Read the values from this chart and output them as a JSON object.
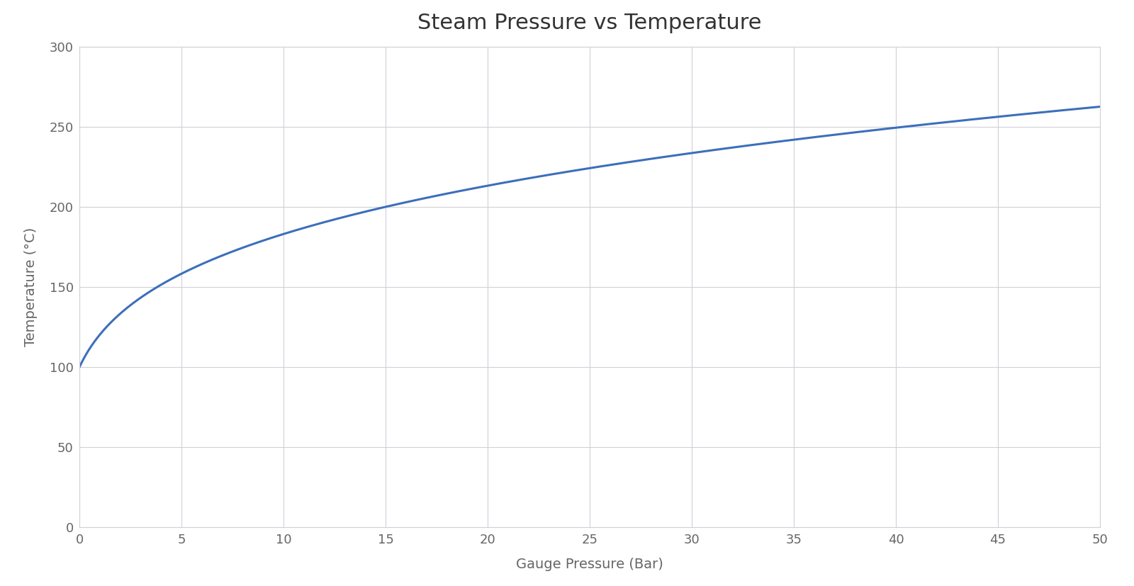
{
  "title": "Steam Pressure vs Temperature",
  "xlabel": "Gauge Pressure (Bar)",
  "ylabel": "Temperature (°C)",
  "xlim": [
    0,
    50
  ],
  "ylim": [
    0,
    300
  ],
  "xticks": [
    0,
    5,
    10,
    15,
    20,
    25,
    30,
    35,
    40,
    45,
    50
  ],
  "yticks": [
    0,
    50,
    100,
    150,
    200,
    250,
    300
  ],
  "line_color": "#3c6fba",
  "line_width": 2.2,
  "background_color": "#ffffff",
  "plot_bg_color": "#ffffff",
  "grid_color": "#d0d0d8",
  "title_fontsize": 22,
  "label_fontsize": 14,
  "tick_fontsize": 13,
  "tick_color": "#666666",
  "label_color": "#666666",
  "title_color": "#333333"
}
